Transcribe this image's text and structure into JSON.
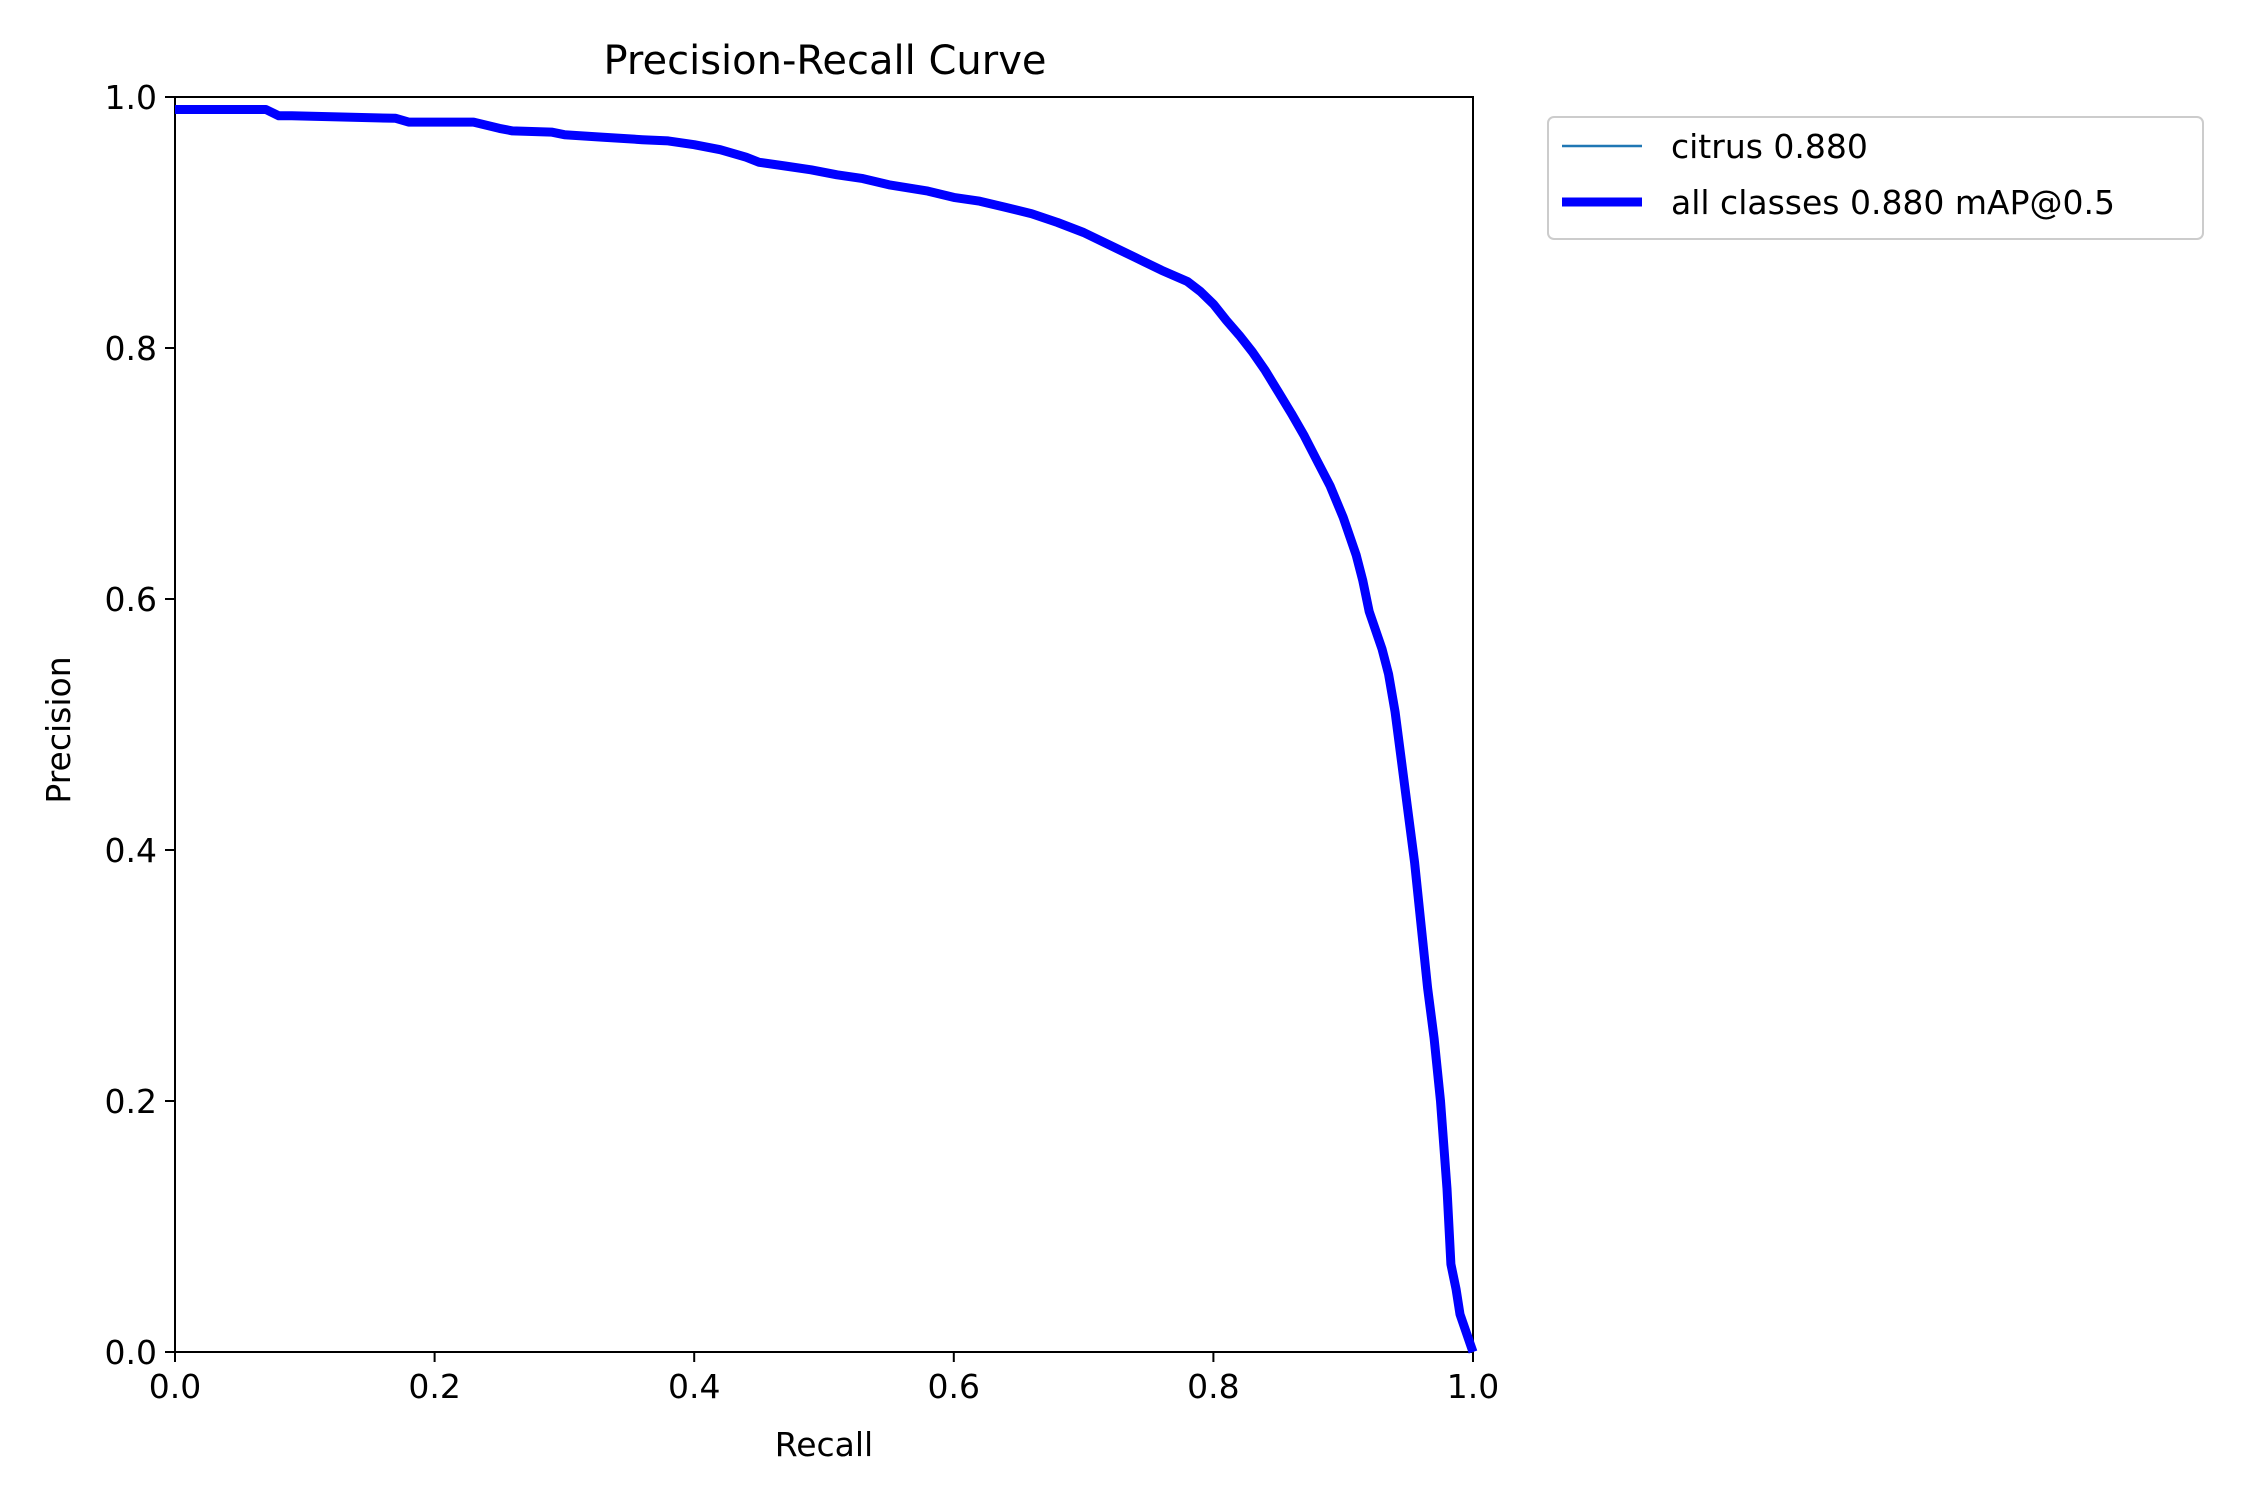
{
  "chart_data": {
    "type": "line",
    "title": "Precision-Recall Curve",
    "xlabel": "Recall",
    "ylabel": "Precision",
    "xlim": [
      0,
      1
    ],
    "ylim": [
      0,
      1
    ],
    "xticks": [
      "0.0",
      "0.2",
      "0.4",
      "0.6",
      "0.8",
      "1.0"
    ],
    "yticks": [
      "0.0",
      "0.2",
      "0.4",
      "0.6",
      "0.8",
      "1.0"
    ],
    "grid": false,
    "legend_position": "outside-top-right",
    "series": [
      {
        "name": "citrus 0.880",
        "color": "#1f77b4",
        "x": [
          0.0,
          0.07,
          0.08,
          0.09,
          0.17,
          0.18,
          0.23,
          0.25,
          0.26,
          0.29,
          0.3,
          0.33,
          0.36,
          0.38,
          0.4,
          0.42,
          0.44,
          0.45,
          0.47,
          0.49,
          0.51,
          0.53,
          0.55,
          0.58,
          0.6,
          0.62,
          0.64,
          0.66,
          0.68,
          0.7,
          0.72,
          0.74,
          0.76,
          0.78,
          0.79,
          0.8,
          0.81,
          0.82,
          0.83,
          0.84,
          0.85,
          0.86,
          0.87,
          0.88,
          0.89,
          0.9,
          0.91,
          0.915,
          0.92,
          0.93,
          0.935,
          0.94,
          0.945,
          0.95,
          0.955,
          0.96,
          0.965,
          0.97,
          0.975,
          0.98,
          0.983,
          0.987,
          0.99,
          1.0
        ],
        "y": [
          0.99,
          0.99,
          0.985,
          0.985,
          0.983,
          0.98,
          0.98,
          0.975,
          0.973,
          0.972,
          0.97,
          0.968,
          0.966,
          0.965,
          0.962,
          0.958,
          0.952,
          0.948,
          0.945,
          0.942,
          0.938,
          0.935,
          0.93,
          0.925,
          0.92,
          0.917,
          0.912,
          0.907,
          0.9,
          0.892,
          0.882,
          0.872,
          0.862,
          0.853,
          0.845,
          0.835,
          0.822,
          0.81,
          0.797,
          0.782,
          0.765,
          0.748,
          0.73,
          0.71,
          0.69,
          0.665,
          0.635,
          0.615,
          0.59,
          0.56,
          0.54,
          0.51,
          0.47,
          0.43,
          0.39,
          0.34,
          0.29,
          0.25,
          0.2,
          0.13,
          0.07,
          0.05,
          0.03,
          0.0
        ]
      },
      {
        "name": "all classes 0.880 mAP@0.5",
        "color": "#0000ff",
        "x": [
          0.0,
          0.07,
          0.08,
          0.09,
          0.17,
          0.18,
          0.23,
          0.25,
          0.26,
          0.29,
          0.3,
          0.33,
          0.36,
          0.38,
          0.4,
          0.42,
          0.44,
          0.45,
          0.47,
          0.49,
          0.51,
          0.53,
          0.55,
          0.58,
          0.6,
          0.62,
          0.64,
          0.66,
          0.68,
          0.7,
          0.72,
          0.74,
          0.76,
          0.78,
          0.79,
          0.8,
          0.81,
          0.82,
          0.83,
          0.84,
          0.85,
          0.86,
          0.87,
          0.88,
          0.89,
          0.9,
          0.91,
          0.915,
          0.92,
          0.93,
          0.935,
          0.94,
          0.945,
          0.95,
          0.955,
          0.96,
          0.965,
          0.97,
          0.975,
          0.98,
          0.983,
          0.987,
          0.99,
          1.0
        ],
        "y": [
          0.99,
          0.99,
          0.985,
          0.985,
          0.983,
          0.98,
          0.98,
          0.975,
          0.973,
          0.972,
          0.97,
          0.968,
          0.966,
          0.965,
          0.962,
          0.958,
          0.952,
          0.948,
          0.945,
          0.942,
          0.938,
          0.935,
          0.93,
          0.925,
          0.92,
          0.917,
          0.912,
          0.907,
          0.9,
          0.892,
          0.882,
          0.872,
          0.862,
          0.853,
          0.845,
          0.835,
          0.822,
          0.81,
          0.797,
          0.782,
          0.765,
          0.748,
          0.73,
          0.71,
          0.69,
          0.665,
          0.635,
          0.615,
          0.59,
          0.56,
          0.54,
          0.51,
          0.47,
          0.43,
          0.39,
          0.34,
          0.29,
          0.25,
          0.2,
          0.13,
          0.07,
          0.05,
          0.03,
          0.0
        ]
      }
    ]
  }
}
